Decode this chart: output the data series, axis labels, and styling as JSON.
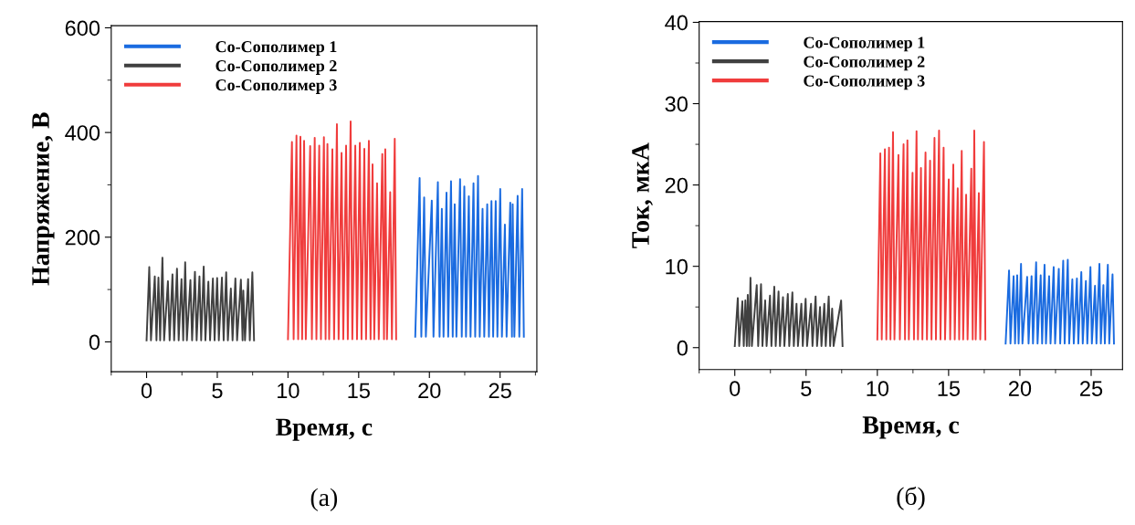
{
  "chart_data": [
    {
      "type": "line",
      "xlabel": "Время, с",
      "ylabel": "Напряжение, В",
      "xlim": [
        -2.5,
        27.6
      ],
      "ylim": [
        -57,
        604
      ],
      "xticks": [
        0,
        5,
        10,
        15,
        20,
        25
      ],
      "yticks": [
        0,
        200,
        400,
        600
      ],
      "legend": "top left",
      "grid": false,
      "annotations": [
        "(а)"
      ],
      "series": [
        {
          "name": "Co-Сополимер 1",
          "color": "#1a6be0",
          "x": [
            19.0,
            19.31,
            19.43,
            19.63,
            19.75,
            20.17,
            20.29,
            20.6,
            20.72,
            20.88,
            21.0,
            21.21,
            21.33,
            21.53,
            21.65,
            21.79,
            21.91,
            22.17,
            22.29,
            22.47,
            22.59,
            22.79,
            22.91,
            23.12,
            23.24,
            23.44,
            23.56,
            23.76,
            23.88,
            24.09,
            24.21,
            24.39,
            24.51,
            24.69,
            24.81,
            25.01,
            25.13,
            25.34,
            25.46,
            25.72,
            25.84,
            25.89,
            26.01,
            26.24,
            26.36,
            26.56,
            26.68
          ],
          "values": [
            10,
            313,
            10,
            276,
            10,
            270,
            10,
            305,
            10,
            254,
            10,
            285,
            10,
            307,
            10,
            263,
            10,
            311,
            10,
            297,
            10,
            278,
            10,
            303,
            10,
            317,
            10,
            254,
            10,
            263,
            10,
            269,
            10,
            269,
            10,
            292,
            10,
            224,
            10,
            266,
            10,
            263,
            10,
            279,
            10,
            292,
            10
          ]
        },
        {
          "name": "Co-Сополимер 2",
          "color": "#404040",
          "x": [
            0.0,
            0.19,
            0.31,
            0.58,
            0.7,
            0.84,
            0.96,
            1.12,
            1.24,
            1.51,
            1.63,
            1.83,
            1.95,
            2.15,
            2.27,
            2.47,
            2.59,
            2.73,
            2.85,
            3.1,
            3.22,
            3.42,
            3.54,
            3.74,
            3.86,
            4.04,
            4.16,
            4.37,
            4.49,
            4.69,
            4.81,
            4.99,
            5.11,
            5.33,
            5.45,
            5.63,
            5.75,
            5.96,
            6.08,
            6.28,
            6.4,
            6.67,
            6.79,
            6.84,
            6.96,
            7.18,
            7.3,
            7.48,
            7.6
          ],
          "values": [
            3,
            143,
            3,
            125,
            3,
            123,
            3,
            161,
            3,
            116,
            3,
            129,
            3,
            140,
            3,
            120,
            3,
            152,
            3,
            118,
            3,
            134,
            3,
            125,
            3,
            144,
            3,
            115,
            3,
            121,
            3,
            122,
            3,
            123,
            3,
            133,
            3,
            102,
            3,
            121,
            3,
            119,
            3,
            98,
            3,
            120,
            3,
            133,
            3
          ]
        },
        {
          "name": "Co-Сополимер 3",
          "color": "#f03c3c",
          "x": [
            10.0,
            10.28,
            10.4,
            10.6,
            10.72,
            10.88,
            11.0,
            11.14,
            11.26,
            11.57,
            11.69,
            11.89,
            12.01,
            12.21,
            12.33,
            12.54,
            12.66,
            12.79,
            12.91,
            13.14,
            13.26,
            13.46,
            13.58,
            13.79,
            13.91,
            14.11,
            14.23,
            14.43,
            14.55,
            14.76,
            14.88,
            15.08,
            15.2,
            15.4,
            15.52,
            15.72,
            15.84,
            15.98,
            16.1,
            16.3,
            16.42,
            16.67,
            16.79,
            16.88,
            17.0,
            17.23,
            17.35,
            17.55,
            17.65
          ],
          "values": [
            5,
            382,
            5,
            394,
            5,
            392,
            5,
            384,
            5,
            374,
            5,
            390,
            5,
            375,
            5,
            391,
            5,
            378,
            5,
            368,
            5,
            416,
            5,
            361,
            5,
            375,
            5,
            421,
            5,
            375,
            5,
            380,
            5,
            369,
            5,
            384,
            5,
            339,
            5,
            303,
            5,
            359,
            5,
            368,
            5,
            286,
            5,
            388,
            5
          ]
        }
      ]
    },
    {
      "type": "line",
      "xlabel": "Время, с",
      "ylabel": "Ток, мкА",
      "xlim": [
        -2.5,
        27.2
      ],
      "ylim": [
        -2.7,
        40.1
      ],
      "xticks": [
        0,
        5,
        10,
        15,
        20,
        25
      ],
      "yticks": [
        0,
        10,
        20,
        30,
        40
      ],
      "legend": "top left",
      "grid": false,
      "annotations": [
        "(б)"
      ],
      "series": [
        {
          "name": "Co-Сополимер 1",
          "color": "#1a6be0",
          "x": [
            19.0,
            19.24,
            19.34,
            19.56,
            19.66,
            19.81,
            19.91,
            20.08,
            20.18,
            20.51,
            20.61,
            20.82,
            20.92,
            21.14,
            21.24,
            21.46,
            21.56,
            21.73,
            21.83,
            22.05,
            22.15,
            22.37,
            22.47,
            22.73,
            22.83,
            23.04,
            23.14,
            23.36,
            23.46,
            23.68,
            23.78,
            24.0,
            24.1,
            24.31,
            24.41,
            24.63,
            24.73,
            24.95,
            25.05,
            25.27,
            25.37,
            25.58,
            25.68,
            25.86,
            25.96,
            26.17,
            26.27,
            26.5,
            26.6
          ],
          "values": [
            0.5,
            9.5,
            0.5,
            8.8,
            0.5,
            8.9,
            0.5,
            10.3,
            0.5,
            8.7,
            0.5,
            8.8,
            0.5,
            10.5,
            0.5,
            8.9,
            0.5,
            10.2,
            0.5,
            8.8,
            0.5,
            9.9,
            0.5,
            9.7,
            0.5,
            10.7,
            0.5,
            10.8,
            0.5,
            8.4,
            0.5,
            8.5,
            0.5,
            9.3,
            0.5,
            8.2,
            0.5,
            9.9,
            0.5,
            7.6,
            0.5,
            10.3,
            0.5,
            7.7,
            0.5,
            10.2,
            0.5,
            9.0,
            0.5
          ]
        },
        {
          "name": "Co-Сополимер 2",
          "color": "#404040",
          "x": [
            0.0,
            0.21,
            0.31,
            0.53,
            0.63,
            0.74,
            0.84,
            0.91,
            1.01,
            1.1,
            1.2,
            1.54,
            1.64,
            1.84,
            1.94,
            2.13,
            2.23,
            2.47,
            2.57,
            2.77,
            2.87,
            3.07,
            3.17,
            3.38,
            3.48,
            3.72,
            3.82,
            4.04,
            4.14,
            4.33,
            4.43,
            4.67,
            4.77,
            4.97,
            5.07,
            5.35,
            5.45,
            5.67,
            5.77,
            5.98,
            6.08,
            6.28,
            6.38,
            6.59,
            6.69,
            6.83,
            6.93,
            7.46,
            7.56
          ],
          "values": [
            0.2,
            6.1,
            0.2,
            5.7,
            0.2,
            5.8,
            0.2,
            6.5,
            0.2,
            8.6,
            0.2,
            7.7,
            0.2,
            7.8,
            0.2,
            5.8,
            0.2,
            6.4,
            0.2,
            7.5,
            0.2,
            6.9,
            0.2,
            6.2,
            0.2,
            6.6,
            0.2,
            6.8,
            0.2,
            5.4,
            0.2,
            5.4,
            0.2,
            6.0,
            0.2,
            5.4,
            0.2,
            6.3,
            0.2,
            5.0,
            0.2,
            5.4,
            0.2,
            6.3,
            0.2,
            4.8,
            0.2,
            5.8,
            0.2
          ]
        },
        {
          "name": "Co-Сополимер 3",
          "color": "#f03c3c",
          "x": [
            10.0,
            10.21,
            10.31,
            10.53,
            10.63,
            10.82,
            10.92,
            11.1,
            11.2,
            11.48,
            11.58,
            11.84,
            11.94,
            12.11,
            12.21,
            12.47,
            12.57,
            12.75,
            12.85,
            13.06,
            13.16,
            13.38,
            13.48,
            13.7,
            13.8,
            14.01,
            14.11,
            14.33,
            14.43,
            14.65,
            14.75,
            15.01,
            15.11,
            15.33,
            15.43,
            15.64,
            15.74,
            15.92,
            16.02,
            16.23,
            16.33,
            16.59,
            16.69,
            16.8,
            16.9,
            17.12,
            17.22,
            17.48,
            17.58
          ],
          "values": [
            1,
            23.9,
            1,
            24.4,
            1,
            24.6,
            1,
            26.5,
            1,
            23.7,
            1,
            25.0,
            1,
            25.5,
            1,
            21.5,
            1,
            26.6,
            1,
            22.1,
            1,
            24.0,
            1,
            23.0,
            1,
            25.8,
            1,
            26.7,
            1,
            24.6,
            1,
            20.7,
            1,
            22.5,
            1,
            19.6,
            1,
            24.2,
            1,
            18.8,
            1,
            22.0,
            1,
            26.7,
            1,
            19.0,
            1,
            25.3,
            1
          ]
        }
      ]
    }
  ]
}
